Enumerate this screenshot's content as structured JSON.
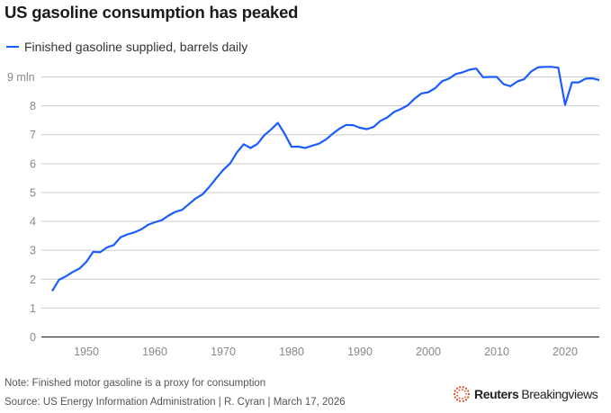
{
  "chart_data": {
    "type": "line",
    "title": "US gasoline consumption has peaked",
    "xlabel": "",
    "ylabel": "",
    "xlim": [
      1945,
      2025
    ],
    "ylim": [
      0,
      9
    ],
    "grid": true,
    "legend_position": "top-left",
    "x_ticks": [
      1950,
      1960,
      1970,
      1980,
      1990,
      2000,
      2010,
      2020
    ],
    "y_ticks": [
      0,
      1,
      2,
      3,
      4,
      5,
      6,
      7,
      8,
      9
    ],
    "y_tick_labels": [
      "0",
      "1",
      "2",
      "3",
      "4",
      "5",
      "6",
      "7",
      "8",
      "9 mln"
    ],
    "series": [
      {
        "name": "Finished gasoline supplied, barrels daily",
        "color": "#1a5cff",
        "x": [
          1945,
          1946,
          1947,
          1948,
          1949,
          1950,
          1951,
          1952,
          1953,
          1954,
          1955,
          1956,
          1957,
          1958,
          1959,
          1960,
          1961,
          1962,
          1963,
          1964,
          1965,
          1966,
          1967,
          1968,
          1969,
          1970,
          1971,
          1972,
          1973,
          1974,
          1975,
          1976,
          1977,
          1978,
          1979,
          1980,
          1981,
          1982,
          1983,
          1984,
          1985,
          1986,
          1987,
          1988,
          1989,
          1990,
          1991,
          1992,
          1993,
          1994,
          1995,
          1996,
          1997,
          1998,
          1999,
          2000,
          2001,
          2002,
          2003,
          2004,
          2005,
          2006,
          2007,
          2008,
          2009,
          2010,
          2011,
          2012,
          2013,
          2014,
          2015,
          2016,
          2017,
          2018,
          2019,
          2020,
          2021,
          2022,
          2023,
          2024,
          2025
        ],
        "values": [
          1.59,
          1.98,
          2.1,
          2.25,
          2.37,
          2.6,
          2.95,
          2.93,
          3.1,
          3.18,
          3.45,
          3.55,
          3.62,
          3.72,
          3.88,
          3.97,
          4.04,
          4.2,
          4.33,
          4.4,
          4.6,
          4.8,
          4.94,
          5.2,
          5.5,
          5.78,
          6.0,
          6.38,
          6.67,
          6.54,
          6.68,
          6.98,
          7.18,
          7.41,
          7.03,
          6.58,
          6.59,
          6.54,
          6.62,
          6.69,
          6.83,
          7.03,
          7.21,
          7.34,
          7.33,
          7.24,
          7.19,
          7.27,
          7.48,
          7.6,
          7.79,
          7.89,
          8.02,
          8.25,
          8.43,
          8.47,
          8.61,
          8.85,
          8.94,
          9.1,
          9.16,
          9.25,
          9.29,
          8.99,
          9.0,
          9.0,
          8.75,
          8.68,
          8.84,
          8.92,
          9.18,
          9.33,
          9.35,
          9.35,
          9.32,
          8.03,
          8.81,
          8.81,
          8.94,
          8.95,
          8.89
        ]
      }
    ]
  },
  "footer": {
    "note": "Note: Finished motor gasoline is a proxy for consumption",
    "source": "Source: US Energy Information Administration | R. Cyran | March 17, 2026",
    "logo_bold": "Reuters",
    "logo_light": "Breakingviews"
  }
}
